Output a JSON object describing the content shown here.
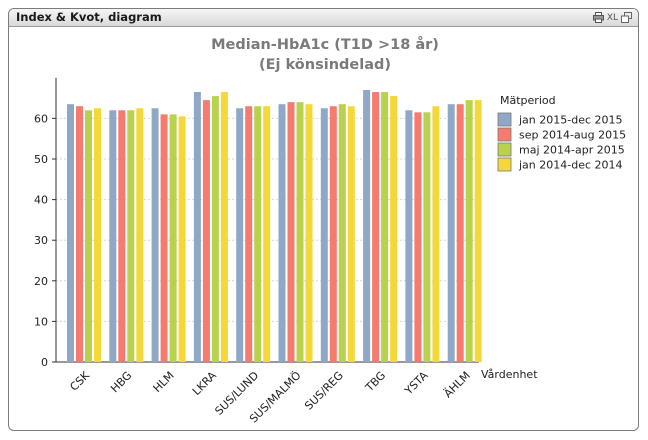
{
  "window": {
    "title": "Index & Kvot, diagram",
    "icons": [
      "print-icon",
      "xl-export-icon",
      "restore-icon"
    ],
    "xl_label": "XL"
  },
  "chart_data": {
    "type": "bar",
    "title": "Median-HbA1c (T1D >18 år)",
    "subtitle": "(Ej könsindelad)",
    "xlabel": "Vårdenhet",
    "ylabel": "",
    "ylim": [
      0,
      70
    ],
    "yticks": [
      0,
      10,
      20,
      30,
      40,
      50,
      60
    ],
    "grid": true,
    "legend_title": "Mätperiod",
    "legend_position": "right",
    "categories": [
      "CSK",
      "HBG",
      "HLM",
      "LKRA",
      "SUS/LUND",
      "SUS/MALMÖ",
      "SUS/REG",
      "TBG",
      "YSTA",
      "ÄHLM"
    ],
    "series": [
      {
        "name": "jan 2015-dec 2015",
        "color": "#8fa8c8",
        "values": [
          63.5,
          62.0,
          62.5,
          66.5,
          62.5,
          63.5,
          62.5,
          67.0,
          62.0,
          63.5
        ]
      },
      {
        "name": "sep 2014-aug 2015",
        "color": "#f47b6e",
        "values": [
          63.0,
          62.0,
          61.0,
          64.5,
          63.0,
          64.0,
          63.0,
          66.5,
          61.5,
          63.5
        ]
      },
      {
        "name": "maj 2014-apr 2015",
        "color": "#b9d24e",
        "values": [
          62.0,
          62.0,
          61.0,
          65.5,
          63.0,
          64.0,
          63.5,
          66.5,
          61.5,
          64.5
        ]
      },
      {
        "name": "jan 2014-dec 2014",
        "color": "#f4d83a",
        "values": [
          62.5,
          62.5,
          60.5,
          66.5,
          63.0,
          63.5,
          63.0,
          65.5,
          63.0,
          64.5
        ]
      }
    ]
  }
}
